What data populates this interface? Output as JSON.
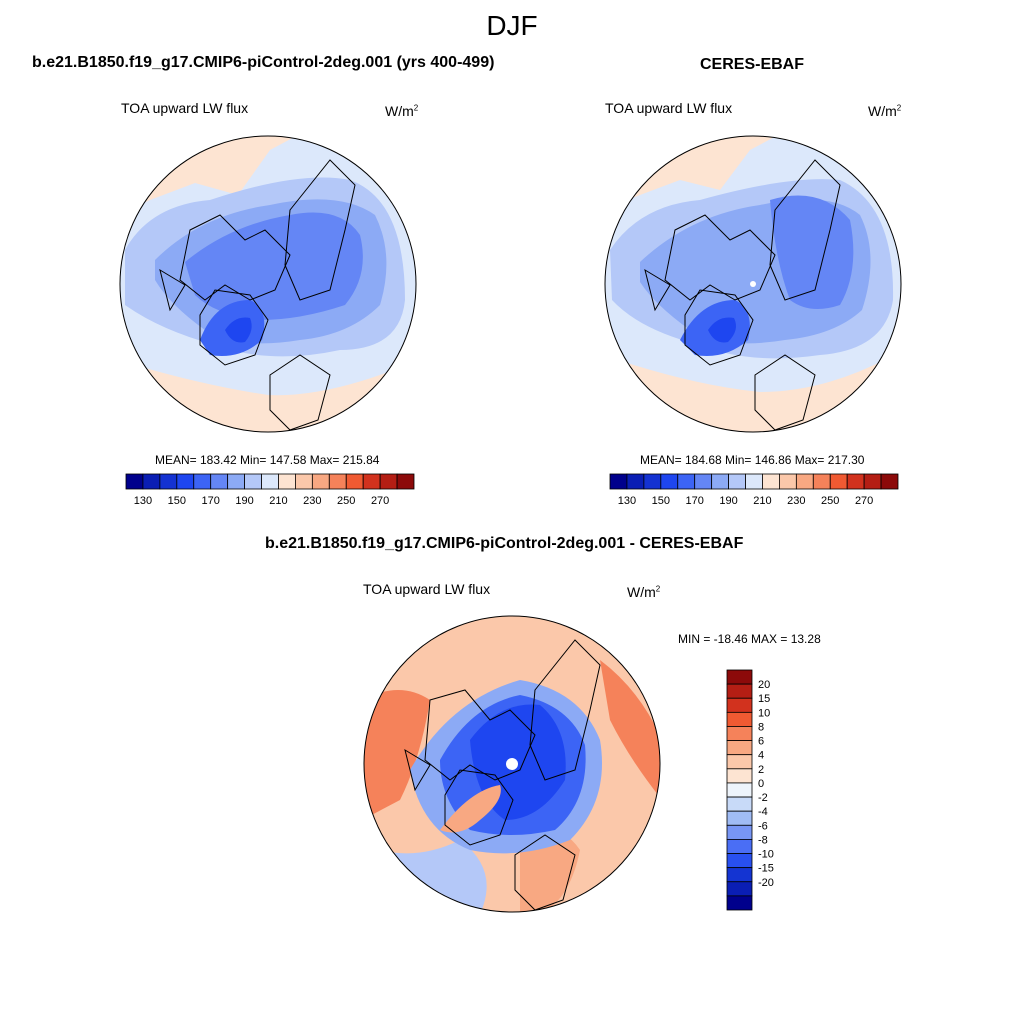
{
  "title": "DJF",
  "panels": [
    {
      "id": "model",
      "title": "b.e21.B1850.f19_g17.CMIP6-piControl-2deg.001 (yrs 400-499)",
      "variable": "TOA upward LW flux",
      "units_base": "W/m",
      "units_exp": "2",
      "stats": "MEAN= 183.42  Min= 147.58  Max= 215.84"
    },
    {
      "id": "obs",
      "title": "CERES-EBAF",
      "variable": "TOA upward LW flux",
      "units_base": "W/m",
      "units_exp": "2",
      "stats": "MEAN= 184.68  Min= 146.86  Max= 217.30"
    },
    {
      "id": "diff",
      "title": "b.e21.B1850.f19_g17.CMIP6-piControl-2deg.001 - CERES-EBAF",
      "variable": "TOA upward LW flux",
      "units_base": "W/m",
      "units_exp": "2",
      "stats": "MIN = -18.46 MAX =  13.28"
    }
  ],
  "chart_data": [
    {
      "type": "heatmap",
      "projection": "north-polar-stereographic",
      "title": "b.e21.B1850.f19_g17.CMIP6-piControl-2deg.001 (yrs 400-499)",
      "variable": "TOA upward LW flux",
      "units": "W/m2",
      "mean": 183.42,
      "min": 147.58,
      "max": 215.84,
      "colorbar_ticks": [
        130,
        150,
        170,
        190,
        210,
        230,
        250,
        270
      ],
      "levels": [
        120,
        130,
        140,
        150,
        160,
        170,
        180,
        190,
        200,
        210,
        220,
        230,
        240,
        250,
        260,
        270,
        280
      ],
      "colors": [
        "#00008c",
        "#0a1eb4",
        "#1432d2",
        "#1e46f0",
        "#3c64f5",
        "#6486f5",
        "#8caaf5",
        "#b4c8f8",
        "#dce8fb",
        "#fde4d2",
        "#fbc8aa",
        "#f8a882",
        "#f5825a",
        "#f05a32",
        "#d2321e",
        "#b41e14",
        "#8c0a0a"
      ],
      "colorbar_orientation": "horizontal"
    },
    {
      "type": "heatmap",
      "projection": "north-polar-stereographic",
      "title": "CERES-EBAF",
      "variable": "TOA upward LW flux",
      "units": "W/m2",
      "mean": 184.68,
      "min": 146.86,
      "max": 217.3,
      "colorbar_ticks": [
        130,
        150,
        170,
        190,
        210,
        230,
        250,
        270
      ],
      "levels": [
        120,
        130,
        140,
        150,
        160,
        170,
        180,
        190,
        200,
        210,
        220,
        230,
        240,
        250,
        260,
        270,
        280
      ],
      "colors": [
        "#00008c",
        "#0a1eb4",
        "#1432d2",
        "#1e46f0",
        "#3c64f5",
        "#6486f5",
        "#8caaf5",
        "#b4c8f8",
        "#dce8fb",
        "#fde4d2",
        "#fbc8aa",
        "#f8a882",
        "#f5825a",
        "#f05a32",
        "#d2321e",
        "#b41e14",
        "#8c0a0a"
      ],
      "colorbar_orientation": "horizontal"
    },
    {
      "type": "heatmap",
      "projection": "north-polar-stereographic",
      "title": "b.e21.B1850.f19_g17.CMIP6-piControl-2deg.001 - CERES-EBAF",
      "variable": "TOA upward LW flux",
      "units": "W/m2",
      "min": -18.46,
      "max": 13.28,
      "colorbar_ticks": [
        20,
        15,
        10,
        8,
        6,
        4,
        2,
        0,
        -2,
        -4,
        -6,
        -8,
        -10,
        -15,
        -20
      ],
      "colors_top_to_bottom": [
        "#8c0a0a",
        "#b41e14",
        "#d2321e",
        "#f05a32",
        "#f5825a",
        "#f8a882",
        "#fbc8aa",
        "#fde4d2",
        "#eef4fb",
        "#c8daf8",
        "#a0bcf5",
        "#7896f5",
        "#4a6ef5",
        "#2850f0",
        "#1434d2",
        "#0a1eb4",
        "#00008c"
      ],
      "colorbar_orientation": "vertical"
    }
  ]
}
